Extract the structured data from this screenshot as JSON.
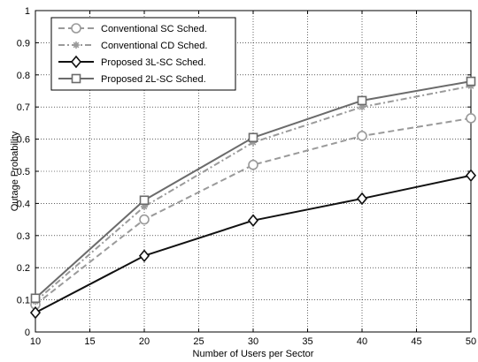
{
  "chart_data": {
    "type": "line",
    "xlabel": "Number of Users per Sector",
    "ylabel": "Outage Probability",
    "xlim": [
      10,
      50
    ],
    "ylim": [
      0,
      1
    ],
    "x_ticks": [
      10,
      15,
      20,
      25,
      30,
      35,
      40,
      45,
      50
    ],
    "y_ticks": [
      0,
      0.1,
      0.2,
      0.3,
      0.4,
      0.5,
      0.6,
      0.7,
      0.8,
      0.9,
      1
    ],
    "grid": true,
    "legend_position": "top-left",
    "x": [
      10,
      20,
      30,
      40,
      50
    ],
    "series": [
      {
        "name": "Conventional SC Sched.",
        "values": [
          0.085,
          0.35,
          0.52,
          0.61,
          0.665
        ],
        "color": "#9a9a9a",
        "dash": "dashed",
        "marker": "circle",
        "width": 2
      },
      {
        "name": "Conventional CD Sched.",
        "values": [
          0.095,
          0.39,
          0.59,
          0.7,
          0.765
        ],
        "color": "#9a9a9a",
        "dash": "dashdot",
        "marker": "star",
        "width": 2
      },
      {
        "name": "Proposed 3L-SC Sched.",
        "values": [
          0.06,
          0.237,
          0.347,
          0.415,
          0.487
        ],
        "color": "#111111",
        "dash": "solid",
        "marker": "diamond",
        "width": 2
      },
      {
        "name": "Proposed 2L-SC Sched.",
        "values": [
          0.105,
          0.41,
          0.605,
          0.72,
          0.78
        ],
        "color": "#6b6b6b",
        "dash": "solid",
        "marker": "square",
        "width": 2
      }
    ]
  }
}
